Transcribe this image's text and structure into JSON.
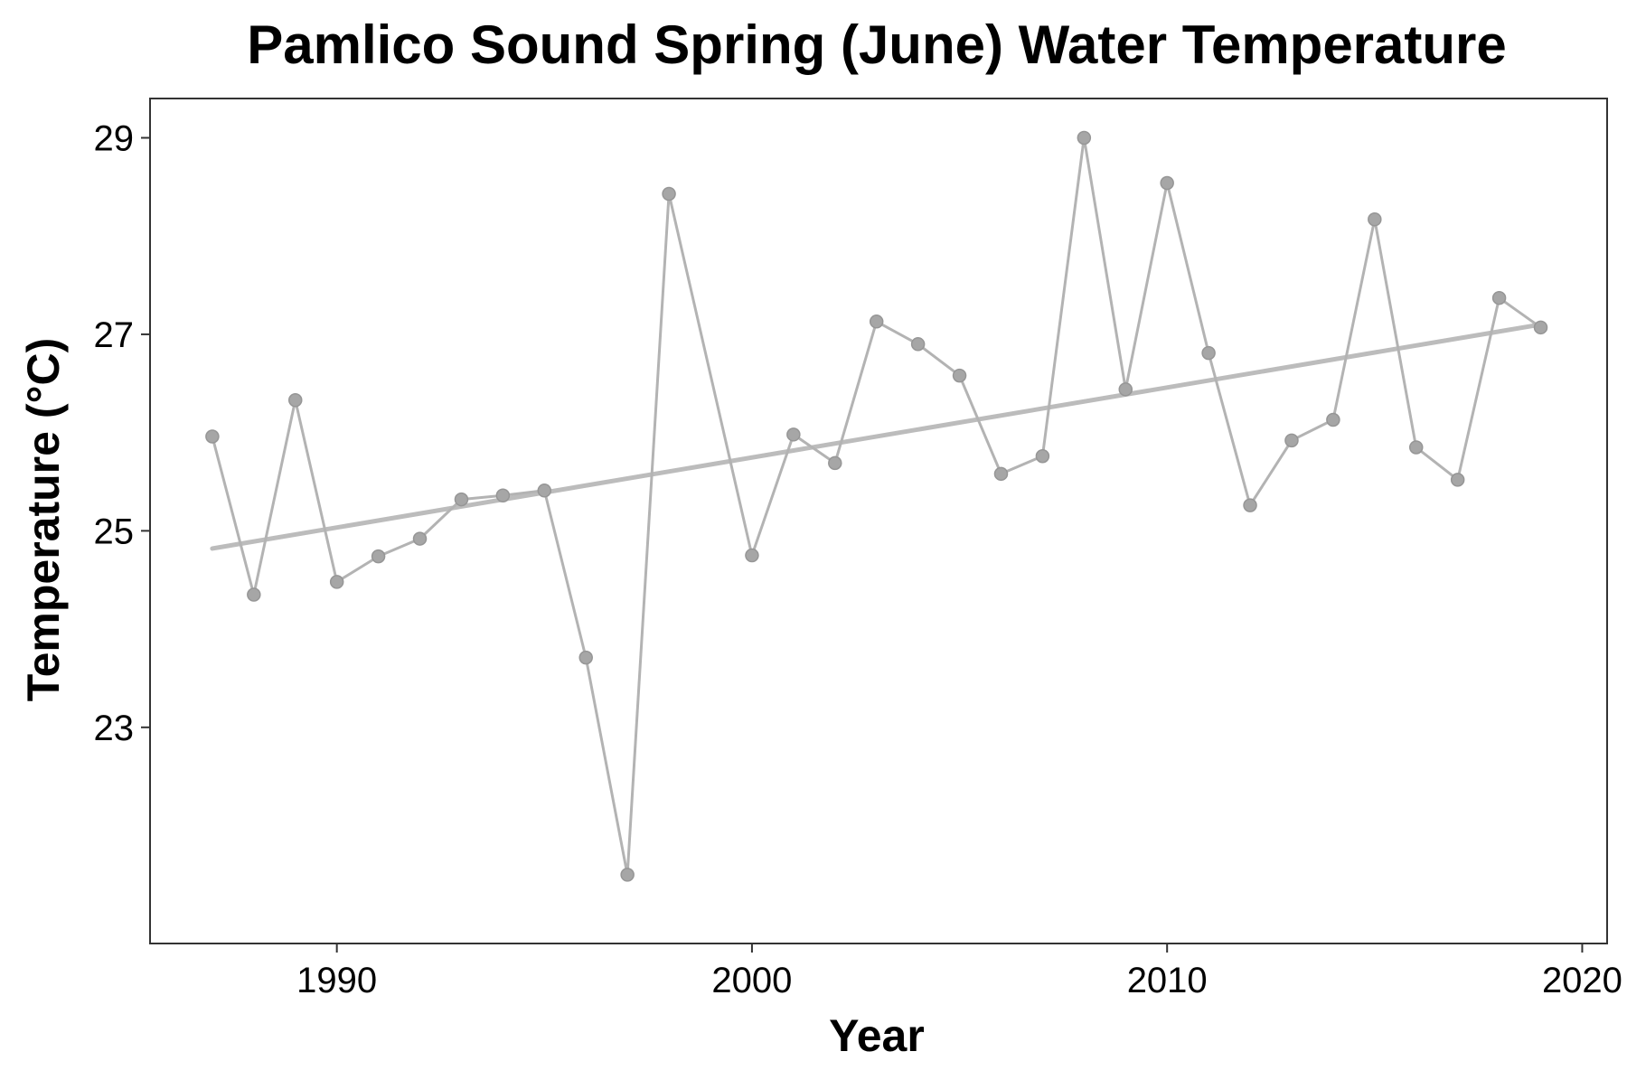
{
  "chart_data": {
    "type": "line",
    "title": "Pamlico Sound Spring (June) Water Temperature",
    "xlabel": "Year",
    "ylabel": "Temperature (°C)",
    "xlim": [
      1985.5,
      2020.6
    ],
    "ylim": [
      20.8,
      29.4
    ],
    "x_ticks": [
      1990,
      2000,
      2010,
      2020
    ],
    "y_ticks": [
      23,
      25,
      27,
      29
    ],
    "grid": false,
    "legend": "none",
    "series": [
      {
        "x": [
          1987,
          1988,
          1989,
          1990,
          1991,
          1992,
          1993,
          1994,
          1995,
          1996,
          1997,
          1998,
          2000,
          2001,
          2002,
          2003,
          2004,
          2005,
          2006,
          2007,
          2008,
          2009,
          2010,
          2011,
          2012,
          2013,
          2014,
          2015,
          2016,
          2017,
          2018,
          2019
        ],
        "values": [
          25.96,
          24.35,
          26.33,
          24.48,
          24.74,
          24.92,
          25.32,
          25.36,
          25.41,
          23.71,
          21.5,
          28.43,
          24.75,
          25.98,
          25.69,
          27.13,
          26.9,
          26.58,
          25.58,
          25.76,
          29.0,
          26.44,
          28.54,
          26.81,
          25.26,
          25.92,
          26.13,
          28.17,
          25.85,
          25.52,
          27.37,
          27.07
        ]
      }
    ],
    "trend": {
      "x": [
        1987,
        2019
      ],
      "values": [
        24.82,
        27.1
      ]
    },
    "colors": {
      "series_line": "#b3b3b3",
      "points": "#a6a6a6",
      "trend_line": "#bcbcbc",
      "frame": "#333333"
    }
  }
}
